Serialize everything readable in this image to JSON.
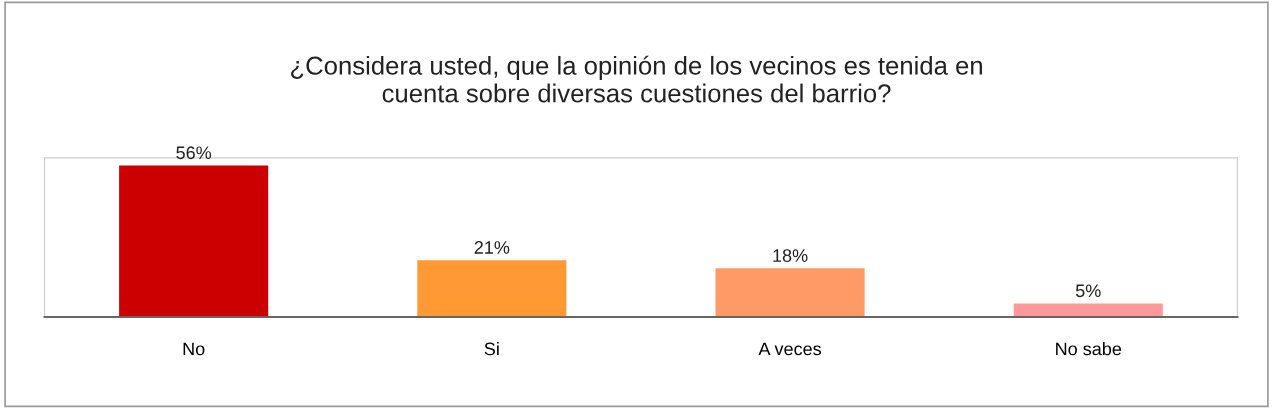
{
  "chart_data": {
    "type": "bar",
    "title": "¿Considera usted, que la opinión de los vecinos es tenida en\ncuenta sobre diversas cuestiones del barrio?",
    "categories": [
      "No",
      "Si",
      "A veces",
      "No sabe"
    ],
    "values": [
      56,
      21,
      18,
      5
    ],
    "value_labels": [
      "56%",
      "21%",
      "18%",
      "5%"
    ],
    "colors": [
      "#cc0000",
      "#ff9933",
      "#ff9966",
      "#ff9999"
    ],
    "grid": false,
    "legend": false
  }
}
